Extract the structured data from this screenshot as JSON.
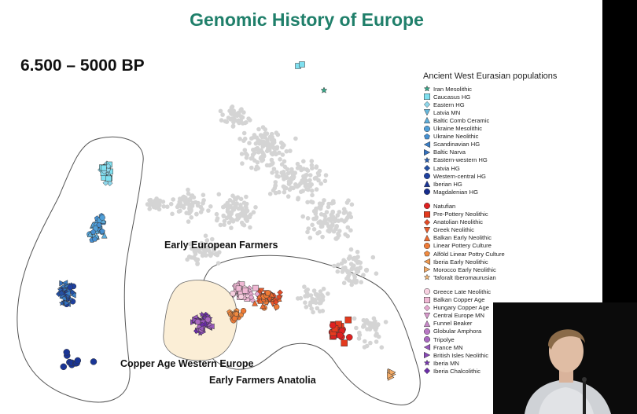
{
  "slide": {
    "title": "Genomic History of Europe",
    "period": "6.500 – 5000 BP"
  },
  "legend": {
    "title": "Ancient West Eurasian populations",
    "groups": [
      [
        {
          "label": "Iran Mesolithic",
          "shape": "star",
          "color": "#3aa88a"
        },
        {
          "label": "Caucasus HG",
          "shape": "square",
          "color": "#7fe0f0"
        },
        {
          "label": "Eastern HG",
          "shape": "diamond",
          "color": "#8fd8ec"
        },
        {
          "label": "Latvia MN",
          "shape": "tri-down",
          "color": "#66b8dc"
        },
        {
          "label": "Baltic Comb Ceramic",
          "shape": "triangle",
          "color": "#5eaedb"
        },
        {
          "label": "Ukraine Mesolithic",
          "shape": "circle",
          "color": "#4f9fd8"
        },
        {
          "label": "Ukraine Neolithic",
          "shape": "pentagon",
          "color": "#4590d2"
        },
        {
          "label": "Scandinavian HG",
          "shape": "tri-left",
          "color": "#3a7fc8"
        },
        {
          "label": "Baltic Narva",
          "shape": "tri-right",
          "color": "#3370bd"
        },
        {
          "label": "Eastern-western HG",
          "shape": "star",
          "color": "#2a5fb0"
        },
        {
          "label": "Latvia HG",
          "shape": "diamond",
          "color": "#2450a4"
        },
        {
          "label": "Western-central HG",
          "shape": "circle",
          "color": "#1e40a0"
        },
        {
          "label": "Iberian HG",
          "shape": "triangle",
          "color": "#1a3596"
        },
        {
          "label": "Magdalenian HG",
          "shape": "circle",
          "color": "#162c8c"
        }
      ],
      [
        {
          "label": "Natufian",
          "shape": "circle",
          "color": "#e02020"
        },
        {
          "label": "Pre-Pottery Neolithic",
          "shape": "square",
          "color": "#e43a1e"
        },
        {
          "label": "Anatolian Neolithic",
          "shape": "diamond",
          "color": "#e24a26"
        },
        {
          "label": "Greek Neolithic",
          "shape": "tri-down",
          "color": "#e85a2a"
        },
        {
          "label": "Balkan Early Neolithic",
          "shape": "triangle",
          "color": "#ec6a30"
        },
        {
          "label": "Linear Pottery Culture",
          "shape": "circle",
          "color": "#ee7a36"
        },
        {
          "label": "Alföld Linear Pottry Culture",
          "shape": "pentagon",
          "color": "#f08a40"
        },
        {
          "label": "Iberia Early Neolithic",
          "shape": "tri-left",
          "color": "#f09a50"
        },
        {
          "label": "Morocco Early Neolithic",
          "shape": "tri-right",
          "color": "#f2aa66"
        },
        {
          "label": "Taforalt Iberomaurusian",
          "shape": "star",
          "color": "#f4ba7a"
        }
      ],
      [
        {
          "label": "Greece Late Neolithic",
          "shape": "circle",
          "color": "#f7d0e0"
        },
        {
          "label": "Balkan Copper Age",
          "shape": "square",
          "color": "#f0b8d4"
        },
        {
          "label": "Hungary Copper Age",
          "shape": "diamond",
          "color": "#e6a8d0"
        },
        {
          "label": "Central Europe MN",
          "shape": "tri-down",
          "color": "#d898cc"
        },
        {
          "label": "Funnel Beaker",
          "shape": "triangle",
          "color": "#c888c8"
        },
        {
          "label": "Globular Amphora",
          "shape": "circle",
          "color": "#b878c4"
        },
        {
          "label": "Tripolye",
          "shape": "circle",
          "color": "#a868c0"
        },
        {
          "label": "France MN",
          "shape": "tri-left",
          "color": "#9858bc"
        },
        {
          "label": "British Isles Neolithic",
          "shape": "tri-right",
          "color": "#8848b6"
        },
        {
          "label": "Iberia MN",
          "shape": "star",
          "color": "#7838b0"
        },
        {
          "label": "Iberia Chalcolithic",
          "shape": "diamond",
          "color": "#6a2ca8"
        }
      ]
    ]
  },
  "annotations": {
    "early_european_farmers": "Early European Farmers",
    "copper_age_western_europe": "Copper Age Western Europe",
    "early_farmers_anatolia": "Early Farmers Anatolia"
  },
  "colors": {
    "title": "#1f7f6a",
    "background_cloud": "#d4d4d4",
    "highlight_fill": "#fbeed6"
  }
}
